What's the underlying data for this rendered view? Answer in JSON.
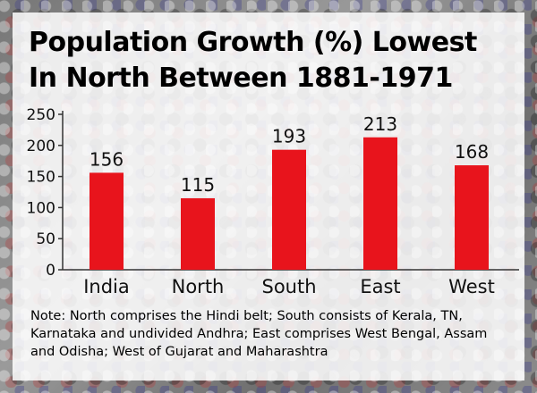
{
  "chart_data": {
    "type": "bar",
    "title_lines": [
      "Population Growth (%) Lowest",
      "In North Between 1881-1971"
    ],
    "categories": [
      "India",
      "North",
      "South",
      "East",
      "West"
    ],
    "values": [
      156,
      115,
      193,
      213,
      168
    ],
    "yticks": [
      0,
      50,
      100,
      150,
      200,
      250
    ],
    "ylim": [
      0,
      250
    ],
    "xlabel": "",
    "ylabel": "",
    "grid": false,
    "bar_color": "#e8141c"
  },
  "note": "Note: North comprises the Hindi belt; South consists of Kerala, TN, Karnataka and undivided Andhra; East comprises West Bengal, Assam and Odisha; West of Gujarat and Maharashtra"
}
